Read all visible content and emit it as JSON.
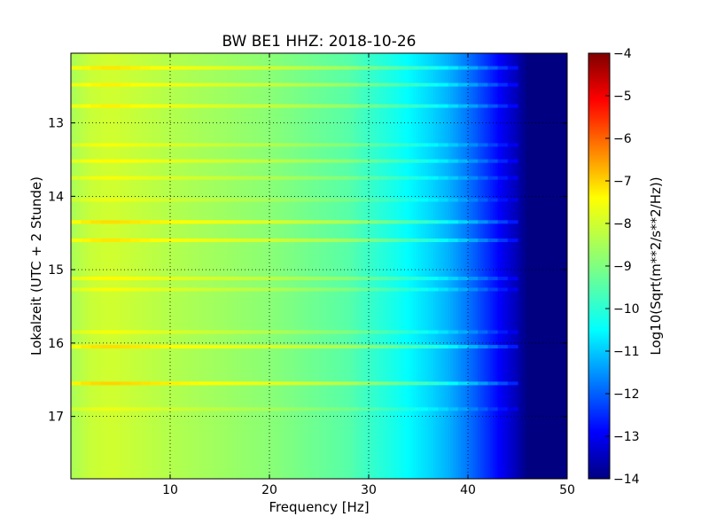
{
  "chart_data": {
    "type": "heatmap",
    "title": "BW BE1 HHZ: 2018-10-26",
    "xlabel": "Frequency [Hz]",
    "ylabel": "Lokalzeit (UTC + 2 Stunde)",
    "xlim": [
      0,
      50
    ],
    "ylim": [
      12.05,
      17.85
    ],
    "y_inverted": true,
    "grid": true,
    "x_ticks": [
      10,
      20,
      30,
      40,
      50
    ],
    "x_tick_labels": [
      "10",
      "20",
      "30",
      "40",
      "50"
    ],
    "y_ticks": [
      13,
      14,
      15,
      16,
      17
    ],
    "y_tick_labels": [
      "13",
      "14",
      "15",
      "16",
      "17"
    ],
    "colorbar": {
      "label": "Log10(Sqrt(m**2/s**2/Hz))",
      "colormap": "jet",
      "range": [
        -14,
        -4
      ],
      "ticks": [
        -4,
        -5,
        -6,
        -7,
        -8,
        -9,
        -10,
        -11,
        -12,
        -13,
        -14
      ],
      "tick_labels": [
        "−4",
        "−5",
        "−6",
        "−7",
        "−8",
        "−9",
        "−10",
        "−11",
        "−12",
        "−13",
        "−14"
      ]
    },
    "spectrum_profile": {
      "frequency_hz": [
        0,
        2,
        4,
        10,
        20,
        28,
        30,
        33,
        36,
        38,
        40,
        42,
        44,
        45,
        46,
        50
      ],
      "log10_amplitude": [
        -8.6,
        -8.3,
        -8.2,
        -8.5,
        -8.9,
        -9.4,
        -9.7,
        -10.1,
        -10.6,
        -11.0,
        -11.6,
        -12.3,
        -13.1,
        -13.5,
        -14.0,
        -14.0
      ]
    },
    "high_energy_bands": [
      {
        "time": 12.25,
        "log10_amplitude_offset": 0.7
      },
      {
        "time": 12.48,
        "log10_amplitude_offset": 0.6
      },
      {
        "time": 12.77,
        "log10_amplitude_offset": 0.6
      },
      {
        "time": 13.3,
        "log10_amplitude_offset": 0.4
      },
      {
        "time": 13.52,
        "log10_amplitude_offset": 0.5
      },
      {
        "time": 13.75,
        "log10_amplitude_offset": 0.4
      },
      {
        "time": 14.05,
        "log10_amplitude_offset": 0.3
      },
      {
        "time": 14.35,
        "log10_amplitude_offset": 0.8
      },
      {
        "time": 14.6,
        "log10_amplitude_offset": 0.7
      },
      {
        "time": 15.12,
        "log10_amplitude_offset": 0.5
      },
      {
        "time": 15.27,
        "log10_amplitude_offset": 0.4
      },
      {
        "time": 15.85,
        "log10_amplitude_offset": 0.4
      },
      {
        "time": 16.05,
        "log10_amplitude_offset": 0.8
      },
      {
        "time": 16.55,
        "log10_amplitude_offset": 0.9
      },
      {
        "time": 16.9,
        "log10_amplitude_offset": 0.3
      }
    ]
  }
}
